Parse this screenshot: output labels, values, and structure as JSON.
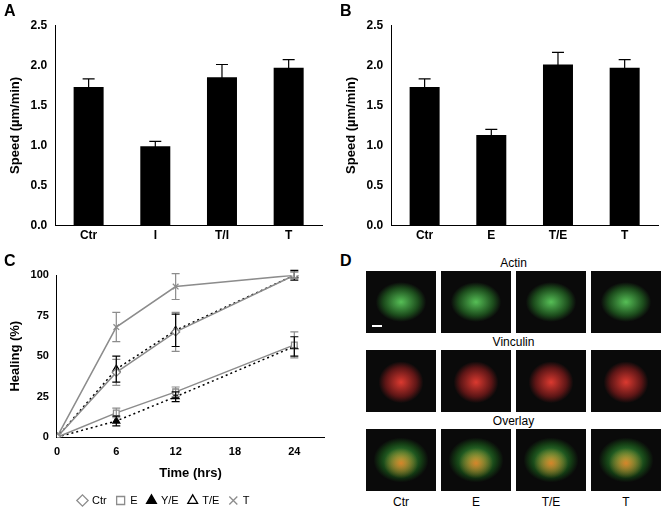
{
  "chart_data": [
    {
      "type": "bar",
      "title": "A",
      "y_label": "Speed (µm/min)",
      "categories": [
        "Ctr",
        "I",
        "T/I",
        "T"
      ],
      "values": [
        1.73,
        0.99,
        1.85,
        1.97
      ],
      "errors": [
        0.1,
        0.06,
        0.16,
        0.1
      ],
      "color": "#000000",
      "ylim": [
        0,
        2.5
      ],
      "yticks": [
        {
          "value": 0,
          "label": "0.0"
        },
        0.5,
        {
          "value": 1,
          "label": "1.0"
        },
        1.5,
        {
          "value": 2,
          "label": "2.0"
        },
        2.5
      ],
      "grid": false
    },
    {
      "type": "bar",
      "title": "B",
      "y_label": "Speed (µm/min)",
      "categories": [
        "Ctr",
        "E",
        "T/E",
        "T"
      ],
      "values": [
        1.73,
        1.13,
        2.01,
        1.97
      ],
      "errors": [
        0.1,
        0.07,
        0.15,
        0.1
      ],
      "color": "#000000",
      "ylim": [
        0,
        2.5
      ],
      "yticks": [
        {
          "value": 0,
          "label": "0.0"
        },
        0.5,
        {
          "value": 1,
          "label": "1.0"
        },
        1.5,
        {
          "value": 2,
          "label": "2.0"
        },
        2.5
      ],
      "grid": false
    },
    {
      "type": "line",
      "title": "C",
      "x_label": "Time (hrs)",
      "y_label": "Healing (%)",
      "x": [
        0,
        6,
        12,
        24
      ],
      "series": [
        {
          "name": "Ctr",
          "color": "#8c8c8c",
          "marker": "open_diamond",
          "line_style": "solid",
          "values": [
            0,
            40,
            65,
            100
          ],
          "errors": [
            0,
            8,
            12,
            2
          ]
        },
        {
          "name": "E",
          "color": "#8c8c8c",
          "marker": "open_square",
          "line_style": "solid",
          "values": [
            0,
            15,
            28,
            57
          ],
          "errors": [
            0,
            3,
            3,
            8
          ]
        },
        {
          "name": "Y/E",
          "color": "#000000",
          "marker": "filled_triangle",
          "line_style": "dotted",
          "values": [
            0,
            10,
            25,
            56
          ],
          "errors": [
            0,
            3,
            3,
            6
          ]
        },
        {
          "name": "T/E",
          "color": "#000000",
          "marker": "open_triangle",
          "line_style": "dotted",
          "values": [
            0,
            42,
            66,
            100
          ],
          "errors": [
            0,
            8,
            10,
            3
          ]
        },
        {
          "name": "T",
          "color": "#8c8c8c",
          "marker": "x",
          "line_style": "solid",
          "values": [
            0,
            68,
            93,
            100
          ],
          "errors": [
            0,
            9,
            8,
            2
          ]
        }
      ],
      "xlim": [
        0,
        27
      ],
      "xticks": [
        0,
        6,
        12,
        18,
        24
      ],
      "ylim": [
        0,
        100
      ],
      "yticks": [
        0,
        25,
        50,
        75,
        100
      ],
      "grid": false,
      "legend": "bottom"
    }
  ],
  "image_panel": {
    "title": "D",
    "rows": [
      "Actin",
      "Vinculin",
      "Overlay"
    ],
    "columns": [
      "Ctr",
      "E",
      "T/E",
      "T"
    ]
  }
}
